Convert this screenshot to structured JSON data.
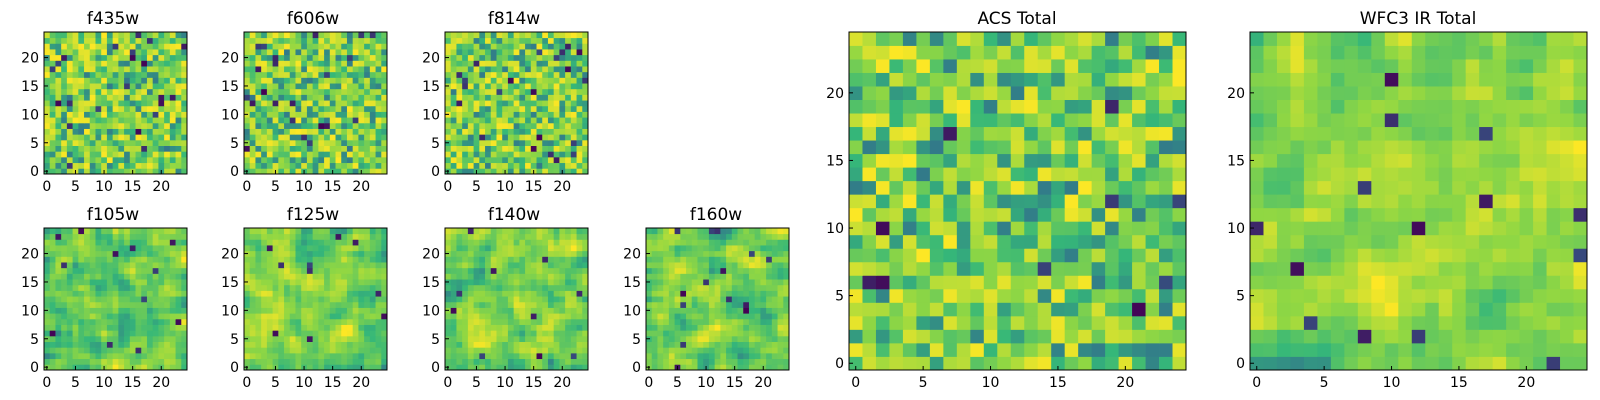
{
  "colormap": {
    "name": "viridis",
    "stops": [
      "#440154",
      "#31688e",
      "#35b779",
      "#90d743",
      "#fde725"
    ]
  },
  "chart_data": [
    {
      "id": "f435w",
      "type": "heatmap",
      "title": "f435w",
      "grid_size": 25,
      "xticks": [
        0,
        5,
        10,
        15,
        20
      ],
      "yticks": [
        0,
        5,
        10,
        15,
        20
      ],
      "noise_level": 0.85,
      "dark_pixels": 22,
      "smooth": false,
      "seed": 11,
      "value_range": [
        0,
        1
      ]
    },
    {
      "id": "f606w",
      "type": "heatmap",
      "title": "f606w",
      "grid_size": 25,
      "xticks": [
        0,
        5,
        10,
        15,
        20
      ],
      "yticks": [
        0,
        5,
        10,
        15,
        20
      ],
      "noise_level": 0.85,
      "dark_pixels": 22,
      "smooth": false,
      "seed": 23,
      "value_range": [
        0,
        1
      ]
    },
    {
      "id": "f814w",
      "type": "heatmap",
      "title": "f814w",
      "grid_size": 25,
      "xticks": [
        0,
        5,
        10,
        15,
        20
      ],
      "yticks": [
        0,
        5,
        10,
        15,
        20
      ],
      "noise_level": 0.85,
      "dark_pixels": 22,
      "smooth": false,
      "seed": 37,
      "value_range": [
        0,
        1
      ]
    },
    {
      "id": "f105w",
      "type": "heatmap",
      "title": "f105w",
      "grid_size": 25,
      "xticks": [
        0,
        5,
        10,
        15,
        20
      ],
      "yticks": [
        0,
        5,
        10,
        15,
        20
      ],
      "noise_level": 0.6,
      "dark_pixels": 12,
      "smooth": true,
      "seed": 41,
      "value_range": [
        0,
        1
      ]
    },
    {
      "id": "f125w",
      "type": "heatmap",
      "title": "f125w",
      "grid_size": 25,
      "xticks": [
        0,
        5,
        10,
        15,
        20
      ],
      "yticks": [
        0,
        5,
        10,
        15,
        20
      ],
      "noise_level": 0.6,
      "dark_pixels": 10,
      "smooth": true,
      "seed": 53,
      "value_range": [
        0,
        1
      ]
    },
    {
      "id": "f140w",
      "type": "heatmap",
      "title": "f140w",
      "grid_size": 25,
      "xticks": [
        0,
        5,
        10,
        15,
        20
      ],
      "yticks": [
        0,
        5,
        10,
        15,
        20
      ],
      "noise_level": 0.6,
      "dark_pixels": 10,
      "smooth": true,
      "seed": 67,
      "value_range": [
        0,
        1
      ]
    },
    {
      "id": "f160w",
      "type": "heatmap",
      "title": "f160w",
      "grid_size": 25,
      "xticks": [
        0,
        5,
        10,
        15,
        20
      ],
      "yticks": [
        0,
        5,
        10,
        15,
        20
      ],
      "noise_level": 0.6,
      "dark_pixels": 14,
      "smooth": true,
      "seed": 71,
      "value_range": [
        0,
        1
      ]
    },
    {
      "id": "acs-total",
      "type": "heatmap",
      "title": "ACS Total",
      "grid_size": 25,
      "xticks": [
        0,
        5,
        10,
        15,
        20
      ],
      "yticks": [
        0,
        5,
        10,
        15,
        20
      ],
      "noise_level": 0.8,
      "dark_pixels": 10,
      "smooth": false,
      "seed": 83,
      "value_range": [
        0,
        1
      ]
    },
    {
      "id": "wfc3-ir-total",
      "type": "heatmap",
      "title": "WFC3 IR Total",
      "grid_size": 25,
      "xticks": [
        0,
        5,
        10,
        15,
        20
      ],
      "yticks": [
        0,
        5,
        10,
        15,
        20
      ],
      "noise_level": 0.55,
      "dark_pixels": 14,
      "smooth": true,
      "seed": 97,
      "value_range": [
        0,
        1
      ]
    }
  ]
}
